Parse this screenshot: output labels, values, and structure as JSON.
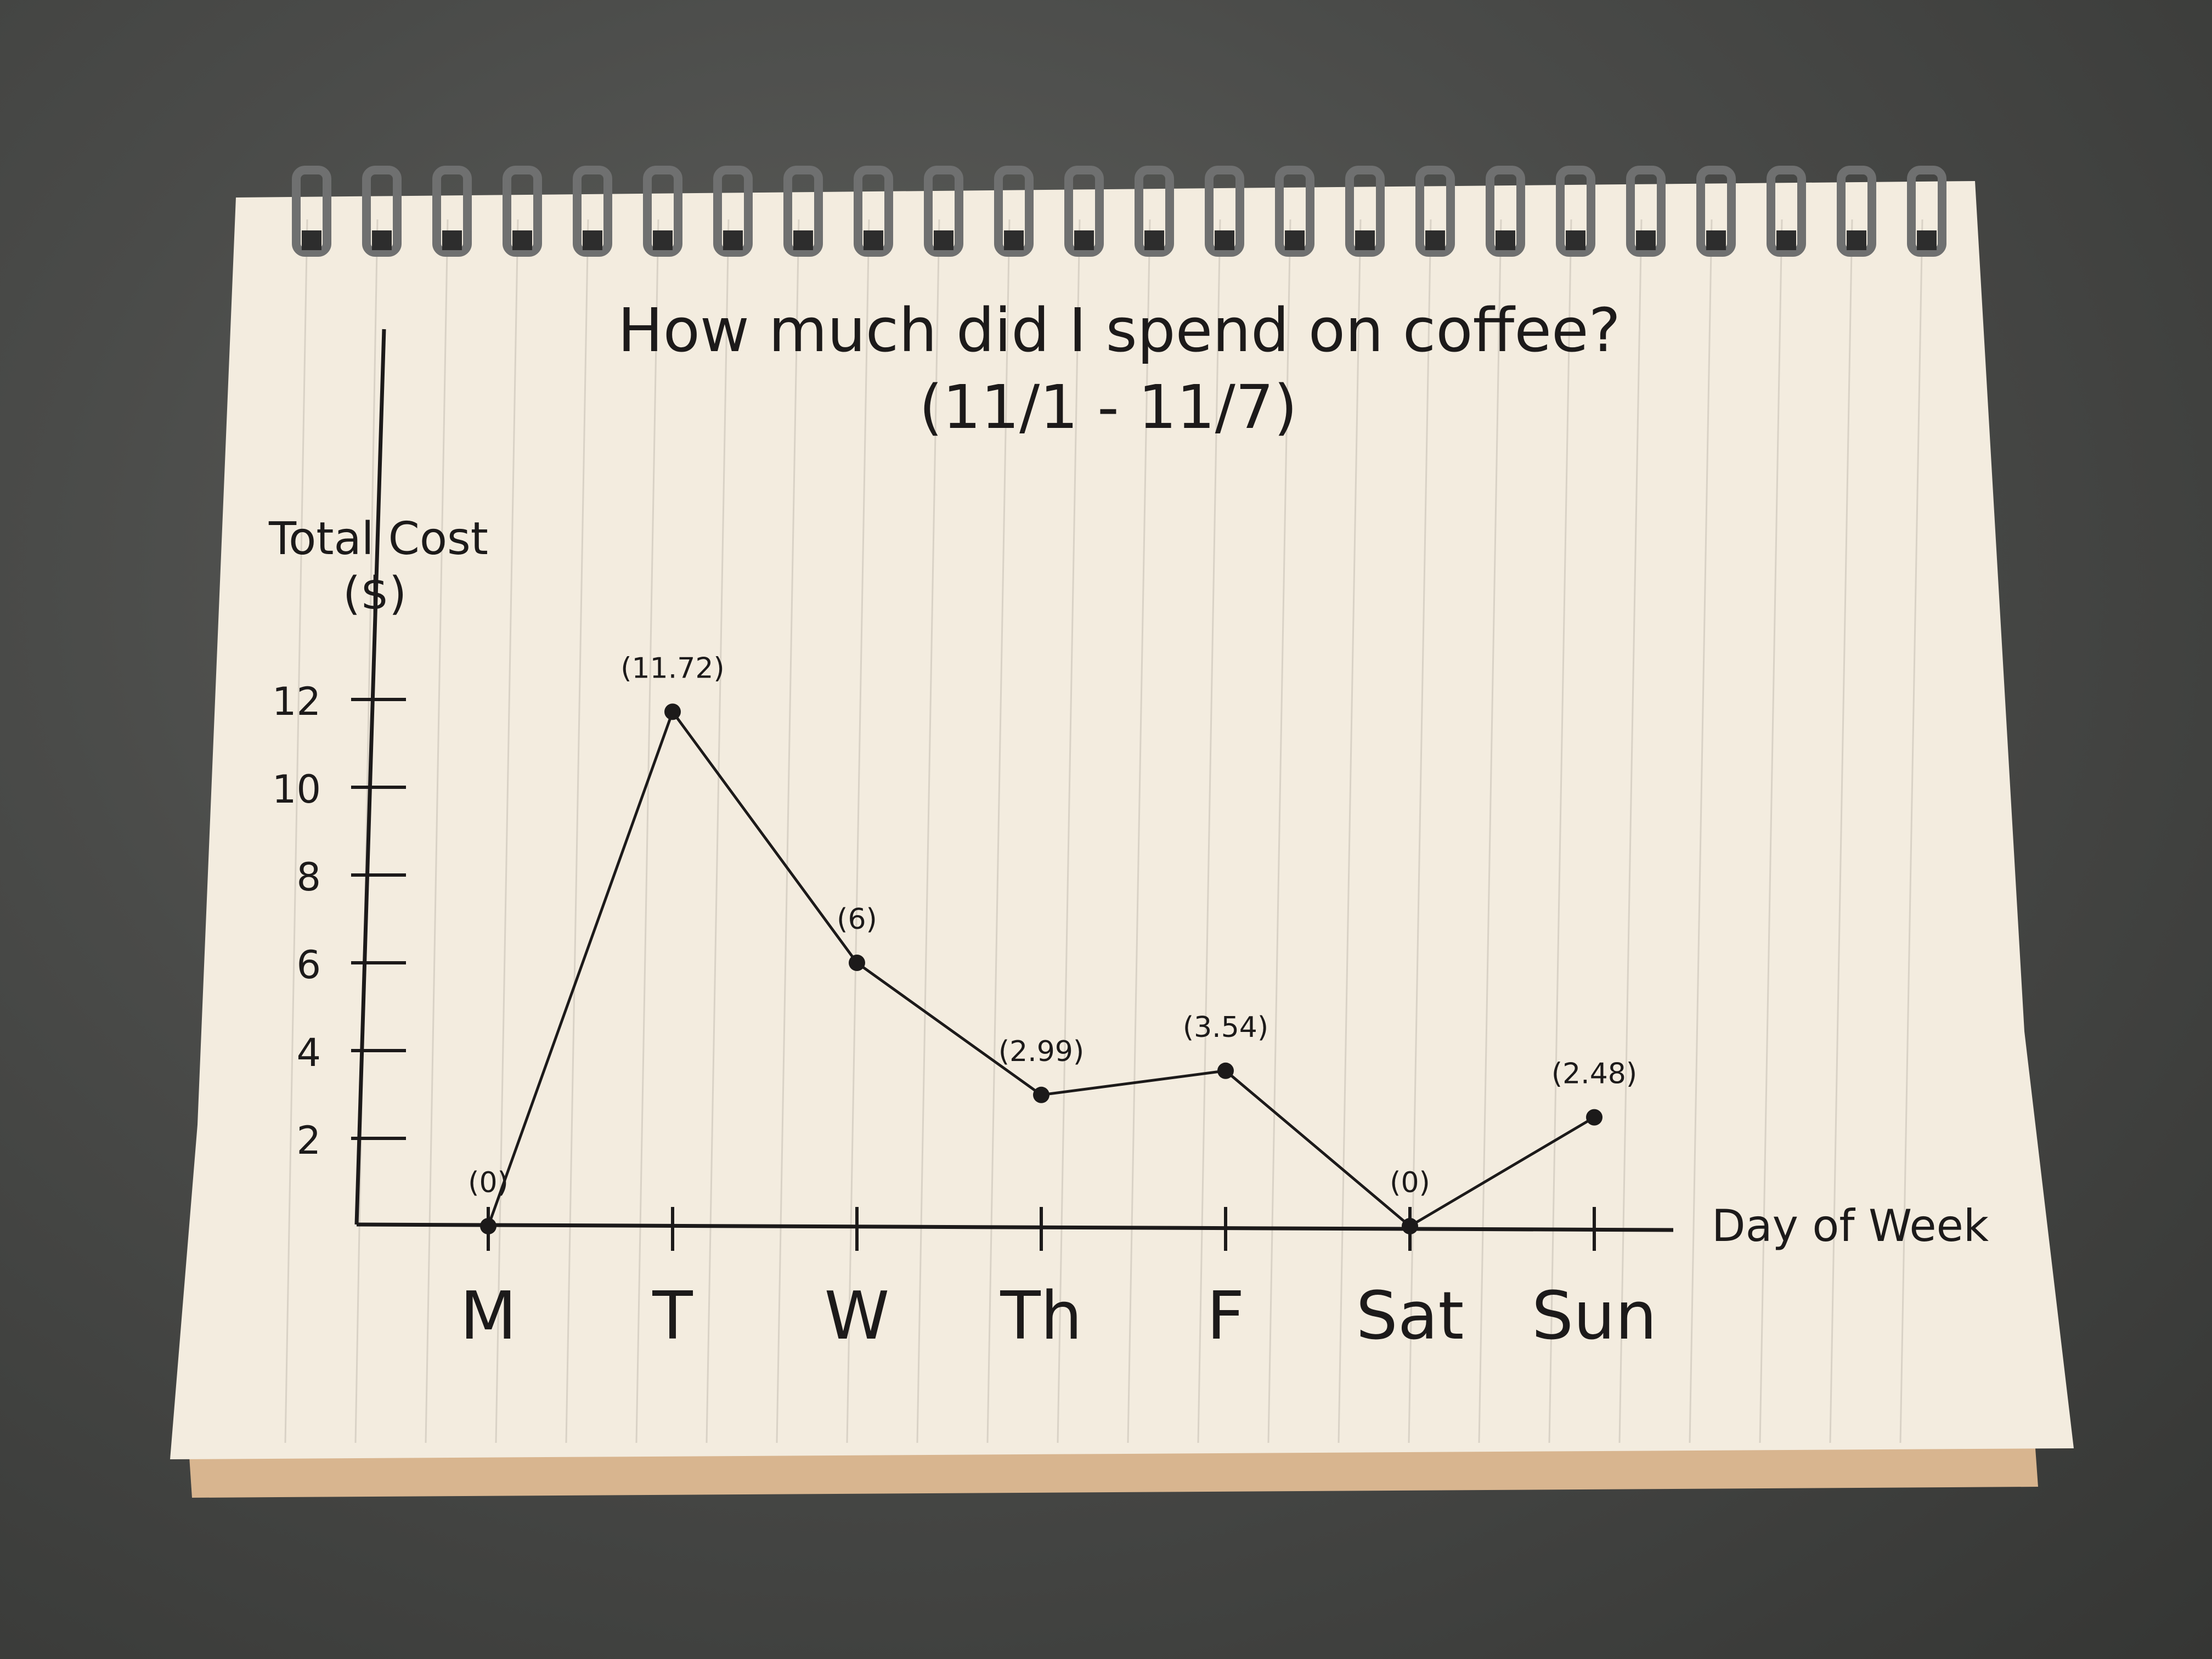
{
  "chart_data": {
    "type": "line",
    "title": "How much did I spend on coffee?",
    "subtitle": "(11/1 - 11/7)",
    "ylabel_line1": "Total Cost",
    "ylabel_line2": "($)",
    "xlabel": "Day of Week",
    "categories": [
      "M",
      "T",
      "W",
      "Th",
      "F",
      "Sat",
      "Sun"
    ],
    "values": [
      0,
      11.72,
      6,
      2.99,
      3.54,
      0,
      2.48
    ],
    "data_labels": [
      "(0)",
      "(11.72)",
      "(6)",
      "(2.99)",
      "(3.54)",
      "(0)",
      "(2.48)"
    ],
    "y_ticks": [
      2,
      4,
      6,
      8,
      10,
      12
    ],
    "y_tick_labels": [
      "2",
      "4",
      "6",
      "8",
      "10",
      "12"
    ],
    "ylim": [
      0,
      12
    ],
    "grid": false,
    "line_color": "#1c1a1a",
    "paper_color": "#f3ecdf",
    "rule_color": "#d9d2c6",
    "surface_color": "#4a4b49",
    "binding_color": "#6f7070"
  }
}
